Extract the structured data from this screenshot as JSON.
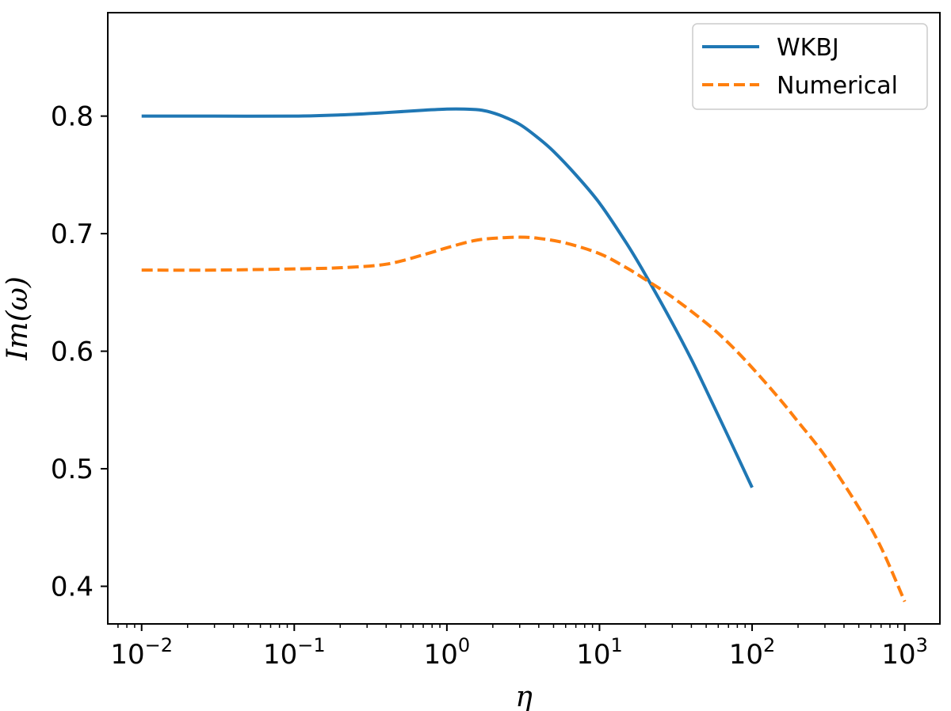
{
  "chart_data": {
    "type": "line",
    "title": "",
    "xlabel": "η",
    "ylabel": "Im(ω)",
    "xscale": "log",
    "xlim": [
      0.006,
      1700
    ],
    "ylim": [
      0.368,
      0.888
    ],
    "grid": false,
    "legend_position": "top-right",
    "x_ticks": [
      {
        "value": 0.01,
        "base": "10",
        "exp": "−2"
      },
      {
        "value": 0.1,
        "base": "10",
        "exp": "−1"
      },
      {
        "value": 1,
        "base": "10",
        "exp": "0"
      },
      {
        "value": 10,
        "base": "10",
        "exp": "1"
      },
      {
        "value": 100,
        "base": "10",
        "exp": "2"
      },
      {
        "value": 1000,
        "base": "10",
        "exp": "3"
      }
    ],
    "y_ticks": [
      {
        "value": 0.4,
        "label": "0.4"
      },
      {
        "value": 0.5,
        "label": "0.5"
      },
      {
        "value": 0.6,
        "label": "0.6"
      },
      {
        "value": 0.7,
        "label": "0.7"
      },
      {
        "value": 0.8,
        "label": "0.8"
      }
    ],
    "series": [
      {
        "name": "WKBJ",
        "color": "#1f77b4",
        "style": "solid",
        "x": [
          0.01,
          0.03,
          0.1,
          0.2,
          0.4,
          0.7,
          1.0,
          1.3,
          1.7,
          2.2,
          3,
          4,
          5,
          7,
          10,
          15,
          20,
          30,
          40,
          50,
          70,
          100
        ],
        "y": [
          0.8,
          0.8,
          0.8,
          0.801,
          0.803,
          0.805,
          0.806,
          0.806,
          0.805,
          0.801,
          0.793,
          0.781,
          0.77,
          0.75,
          0.726,
          0.692,
          0.665,
          0.624,
          0.593,
          0.567,
          0.527,
          0.484
        ]
      },
      {
        "name": "Numerical",
        "color": "#ff7f0e",
        "style": "dashed",
        "x": [
          0.01,
          0.03,
          0.1,
          0.2,
          0.4,
          0.7,
          1.0,
          1.5,
          2.0,
          3.0,
          4.0,
          6.0,
          10,
          15,
          20,
          30,
          50,
          70,
          100,
          150,
          200,
          300,
          500,
          700,
          1000
        ],
        "y": [
          0.669,
          0.669,
          0.67,
          0.671,
          0.674,
          0.682,
          0.688,
          0.694,
          0.696,
          0.697,
          0.696,
          0.692,
          0.683,
          0.671,
          0.661,
          0.646,
          0.624,
          0.607,
          0.586,
          0.56,
          0.54,
          0.511,
          0.467,
          0.433,
          0.387
        ]
      }
    ]
  }
}
